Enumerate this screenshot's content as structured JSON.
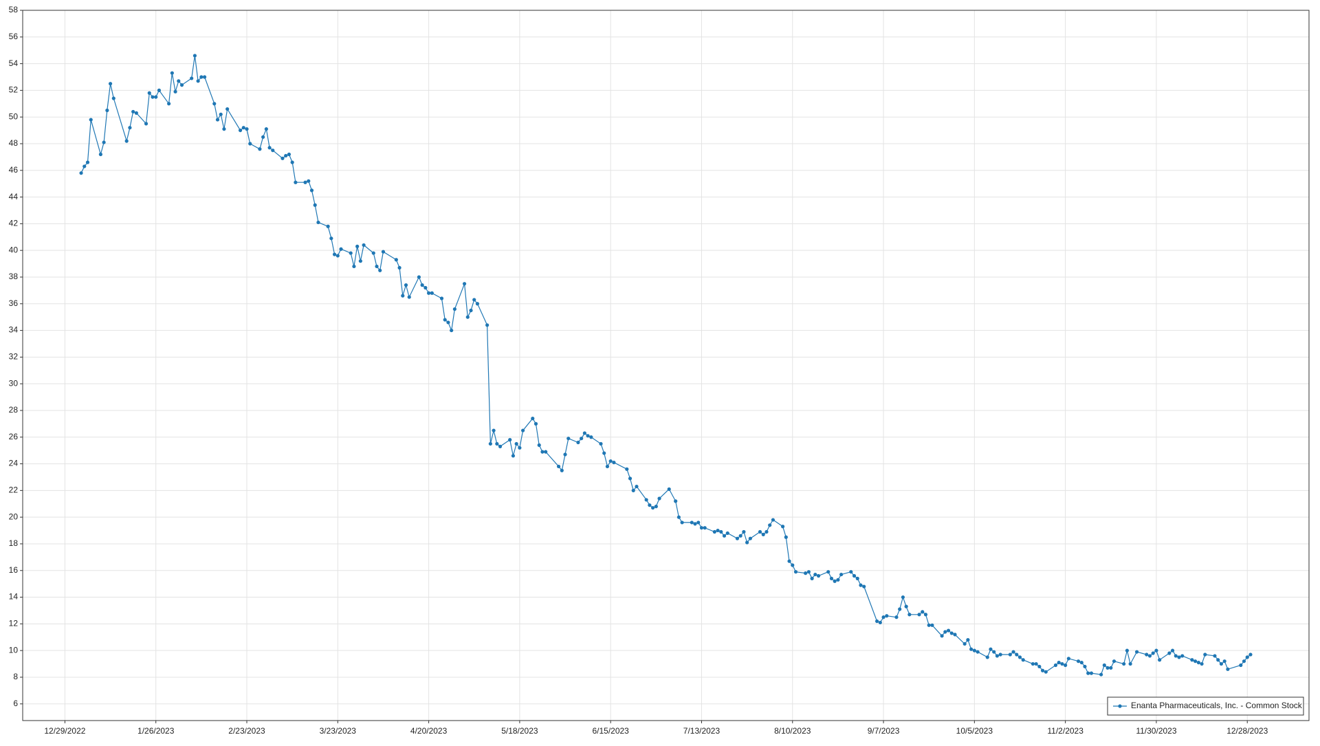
{
  "chart_data": {
    "type": "line",
    "series": [
      {
        "name": "Enanta Pharmaceuticals, Inc. - Common Stock",
        "color": "#1f77b4",
        "x": [
          "2023-01-03",
          "2023-01-04",
          "2023-01-05",
          "2023-01-06",
          "2023-01-09",
          "2023-01-10",
          "2023-01-11",
          "2023-01-12",
          "2023-01-13",
          "2023-01-17",
          "2023-01-18",
          "2023-01-19",
          "2023-01-20",
          "2023-01-23",
          "2023-01-24",
          "2023-01-25",
          "2023-01-26",
          "2023-01-27",
          "2023-01-30",
          "2023-01-31",
          "2023-02-01",
          "2023-02-02",
          "2023-02-03",
          "2023-02-06",
          "2023-02-07",
          "2023-02-08",
          "2023-02-09",
          "2023-02-10",
          "2023-02-13",
          "2023-02-14",
          "2023-02-15",
          "2023-02-16",
          "2023-02-17",
          "2023-02-21",
          "2023-02-22",
          "2023-02-23",
          "2023-02-24",
          "2023-02-27",
          "2023-02-28",
          "2023-03-01",
          "2023-03-02",
          "2023-03-03",
          "2023-03-06",
          "2023-03-07",
          "2023-03-08",
          "2023-03-09",
          "2023-03-10",
          "2023-03-13",
          "2023-03-14",
          "2023-03-15",
          "2023-03-16",
          "2023-03-17",
          "2023-03-20",
          "2023-03-21",
          "2023-03-22",
          "2023-03-23",
          "2023-03-24",
          "2023-03-27",
          "2023-03-28",
          "2023-03-29",
          "2023-03-30",
          "2023-03-31",
          "2023-04-03",
          "2023-04-04",
          "2023-04-05",
          "2023-04-06",
          "2023-04-10",
          "2023-04-11",
          "2023-04-12",
          "2023-04-13",
          "2023-04-14",
          "2023-04-17",
          "2023-04-18",
          "2023-04-19",
          "2023-04-20",
          "2023-04-21",
          "2023-04-24",
          "2023-04-25",
          "2023-04-26",
          "2023-04-27",
          "2023-04-28",
          "2023-05-01",
          "2023-05-02",
          "2023-05-03",
          "2023-05-04",
          "2023-05-05",
          "2023-05-08",
          "2023-05-09",
          "2023-05-10",
          "2023-05-11",
          "2023-05-12",
          "2023-05-15",
          "2023-05-16",
          "2023-05-17",
          "2023-05-18",
          "2023-05-19",
          "2023-05-22",
          "2023-05-23",
          "2023-05-24",
          "2023-05-25",
          "2023-05-26",
          "2023-05-30",
          "2023-05-31",
          "2023-06-01",
          "2023-06-02",
          "2023-06-05",
          "2023-06-06",
          "2023-06-07",
          "2023-06-08",
          "2023-06-09",
          "2023-06-12",
          "2023-06-13",
          "2023-06-14",
          "2023-06-15",
          "2023-06-16",
          "2023-06-20",
          "2023-06-21",
          "2023-06-22",
          "2023-06-23",
          "2023-06-26",
          "2023-06-27",
          "2023-06-28",
          "2023-06-29",
          "2023-06-30",
          "2023-07-03",
          "2023-07-05",
          "2023-07-06",
          "2023-07-07",
          "2023-07-10",
          "2023-07-11",
          "2023-07-12",
          "2023-07-13",
          "2023-07-14",
          "2023-07-17",
          "2023-07-18",
          "2023-07-19",
          "2023-07-20",
          "2023-07-21",
          "2023-07-24",
          "2023-07-25",
          "2023-07-26",
          "2023-07-27",
          "2023-07-28",
          "2023-07-31",
          "2023-08-01",
          "2023-08-02",
          "2023-08-03",
          "2023-08-04",
          "2023-08-07",
          "2023-08-08",
          "2023-08-09",
          "2023-08-10",
          "2023-08-11",
          "2023-08-14",
          "2023-08-15",
          "2023-08-16",
          "2023-08-17",
          "2023-08-18",
          "2023-08-21",
          "2023-08-22",
          "2023-08-23",
          "2023-08-24",
          "2023-08-25",
          "2023-08-28",
          "2023-08-29",
          "2023-08-30",
          "2023-08-31",
          "2023-09-01",
          "2023-09-05",
          "2023-09-06",
          "2023-09-07",
          "2023-09-08",
          "2023-09-11",
          "2023-09-12",
          "2023-09-13",
          "2023-09-14",
          "2023-09-15",
          "2023-09-18",
          "2023-09-19",
          "2023-09-20",
          "2023-09-21",
          "2023-09-22",
          "2023-09-25",
          "2023-09-26",
          "2023-09-27",
          "2023-09-28",
          "2023-09-29",
          "2023-10-02",
          "2023-10-03",
          "2023-10-04",
          "2023-10-05",
          "2023-10-06",
          "2023-10-09",
          "2023-10-10",
          "2023-10-11",
          "2023-10-12",
          "2023-10-13",
          "2023-10-16",
          "2023-10-17",
          "2023-10-18",
          "2023-10-19",
          "2023-10-20",
          "2023-10-23",
          "2023-10-24",
          "2023-10-25",
          "2023-10-26",
          "2023-10-27",
          "2023-10-30",
          "2023-10-31",
          "2023-11-01",
          "2023-11-02",
          "2023-11-03",
          "2023-11-06",
          "2023-11-07",
          "2023-11-08",
          "2023-11-09",
          "2023-11-10",
          "2023-11-13",
          "2023-11-14",
          "2023-11-15",
          "2023-11-16",
          "2023-11-17",
          "2023-11-20",
          "2023-11-21",
          "2023-11-22",
          "2023-11-24",
          "2023-11-27",
          "2023-11-28",
          "2023-11-29",
          "2023-11-30",
          "2023-12-01",
          "2023-12-04",
          "2023-12-05",
          "2023-12-06",
          "2023-12-07",
          "2023-12-08",
          "2023-12-11",
          "2023-12-12",
          "2023-12-13",
          "2023-12-14",
          "2023-12-15",
          "2023-12-18",
          "2023-12-19",
          "2023-12-20",
          "2023-12-21",
          "2023-12-22",
          "2023-12-26",
          "2023-12-27",
          "2023-12-28",
          "2023-12-29"
        ],
        "values": [
          45.8,
          46.3,
          46.6,
          49.8,
          47.2,
          48.1,
          50.5,
          52.5,
          51.4,
          48.2,
          49.2,
          50.4,
          50.3,
          49.5,
          51.8,
          51.5,
          51.5,
          52.0,
          51.0,
          53.3,
          51.9,
          52.7,
          52.4,
          52.9,
          54.6,
          52.7,
          53.0,
          53.0,
          51.0,
          49.8,
          50.2,
          49.1,
          50.6,
          49.0,
          49.2,
          49.1,
          48.0,
          47.6,
          48.5,
          49.1,
          47.7,
          47.5,
          46.9,
          47.1,
          47.2,
          46.6,
          45.1,
          45.1,
          45.2,
          44.5,
          43.4,
          42.1,
          41.8,
          40.9,
          39.7,
          39.6,
          40.1,
          39.8,
          38.8,
          40.3,
          39.2,
          40.4,
          39.8,
          38.8,
          38.5,
          39.9,
          39.3,
          38.7,
          36.6,
          37.4,
          36.5,
          38.0,
          37.4,
          37.2,
          36.8,
          36.8,
          36.4,
          34.8,
          34.6,
          34.0,
          35.6,
          37.5,
          35.0,
          35.5,
          36.3,
          36.0,
          34.4,
          25.5,
          26.5,
          25.5,
          25.3,
          25.8,
          24.6,
          25.5,
          25.2,
          26.5,
          27.4,
          27.0,
          25.4,
          24.9,
          24.9,
          23.8,
          23.5,
          24.7,
          25.9,
          25.6,
          25.9,
          26.3,
          26.1,
          26.0,
          25.5,
          24.8,
          23.8,
          24.2,
          24.1,
          23.6,
          22.9,
          22.0,
          22.3,
          21.3,
          20.9,
          20.7,
          20.8,
          21.4,
          22.1,
          21.2,
          20.0,
          19.6,
          19.6,
          19.5,
          19.6,
          19.2,
          19.2,
          18.9,
          19.0,
          18.9,
          18.6,
          18.8,
          18.4,
          18.6,
          18.9,
          18.1,
          18.4,
          18.9,
          18.7,
          18.9,
          19.4,
          19.8,
          19.3,
          18.5,
          16.7,
          16.4,
          15.9,
          15.8,
          15.9,
          15.4,
          15.7,
          15.6,
          15.9,
          15.4,
          15.2,
          15.3,
          15.7,
          15.9,
          15.6,
          15.4,
          14.9,
          14.8,
          12.2,
          12.1,
          12.5,
          12.6,
          12.5,
          13.1,
          14.0,
          13.3,
          12.7,
          12.7,
          12.9,
          12.7,
          11.9,
          11.9,
          11.1,
          11.4,
          11.5,
          11.3,
          11.2,
          10.5,
          10.8,
          10.1,
          10.0,
          9.9,
          9.5,
          10.1,
          9.9,
          9.6,
          9.7,
          9.7,
          9.9,
          9.7,
          9.5,
          9.3,
          9.0,
          9.0,
          8.8,
          8.5,
          8.4,
          8.9,
          9.1,
          9.0,
          8.9,
          9.4,
          9.2,
          9.1,
          8.8,
          8.3,
          8.3,
          8.2,
          8.9,
          8.7,
          8.7,
          9.2,
          9.0,
          10.0,
          9.0,
          9.9,
          9.7,
          9.6,
          9.8,
          10.0,
          9.3,
          9.8,
          10.0,
          9.6,
          9.5,
          9.6,
          9.3,
          9.2,
          9.1,
          9.0,
          9.7,
          9.6,
          9.3,
          9.0,
          9.2,
          8.6,
          8.9,
          9.2,
          9.5,
          9.7
        ]
      }
    ],
    "xlim": [
      "2022-12-16",
      "2024-01-16"
    ],
    "xticks": [
      {
        "value": "2022-12-29",
        "label": "12/29/2022"
      },
      {
        "value": "2023-01-26",
        "label": "1/26/2023"
      },
      {
        "value": "2023-02-23",
        "label": "2/23/2023"
      },
      {
        "value": "2023-03-23",
        "label": "3/23/2023"
      },
      {
        "value": "2023-04-20",
        "label": "4/20/2023"
      },
      {
        "value": "2023-05-18",
        "label": "5/18/2023"
      },
      {
        "value": "2023-06-15",
        "label": "6/15/2023"
      },
      {
        "value": "2023-07-13",
        "label": "7/13/2023"
      },
      {
        "value": "2023-08-10",
        "label": "8/10/2023"
      },
      {
        "value": "2023-09-07",
        "label": "9/7/2023"
      },
      {
        "value": "2023-10-05",
        "label": "10/5/2023"
      },
      {
        "value": "2023-11-02",
        "label": "11/2/2023"
      },
      {
        "value": "2023-11-30",
        "label": "11/30/2023"
      },
      {
        "value": "2023-12-28",
        "label": "12/28/2023"
      }
    ],
    "ylim": [
      4.75,
      58
    ],
    "yticks": [
      6,
      8,
      10,
      12,
      14,
      16,
      18,
      20,
      22,
      24,
      26,
      28,
      30,
      32,
      34,
      36,
      38,
      40,
      42,
      44,
      46,
      48,
      50,
      52,
      54,
      56,
      58
    ],
    "grid": true,
    "legend": "lower right"
  }
}
